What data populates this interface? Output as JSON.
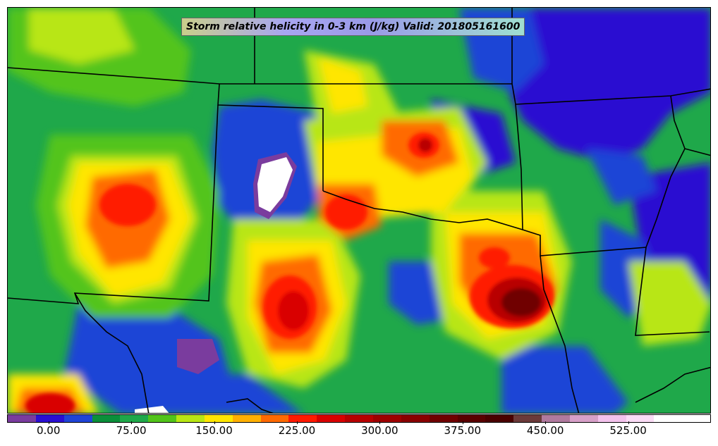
{
  "title": "Storm relative helicity in 0-3 km (J/kg) Valid: 201805161600",
  "colorbar": {
    "colors": [
      "#7a3c9e",
      "#2a0fd1",
      "#1f44d6",
      "#0b8f3a",
      "#1fa84a",
      "#52c41a",
      "#b8e614",
      "#ffe600",
      "#ffb000",
      "#ff6a00",
      "#ff1a00",
      "#d90000",
      "#b80000",
      "#9e0000",
      "#8a0000",
      "#700000",
      "#5a0000",
      "#4a0000",
      "#6b3a3a",
      "#b07a9e",
      "#d7a0c8",
      "#f3c2ec",
      "#fbdcf6",
      "#ffffff",
      "#ffffff"
    ],
    "tick_labels": [
      "0.00",
      "75.00",
      "150.00",
      "225.00",
      "300.00",
      "375.00",
      "450.00",
      "525.00"
    ],
    "tick_values": [
      0,
      75,
      150,
      225,
      300,
      375,
      450,
      525
    ],
    "range": [
      -37.5,
      600
    ]
  }
}
